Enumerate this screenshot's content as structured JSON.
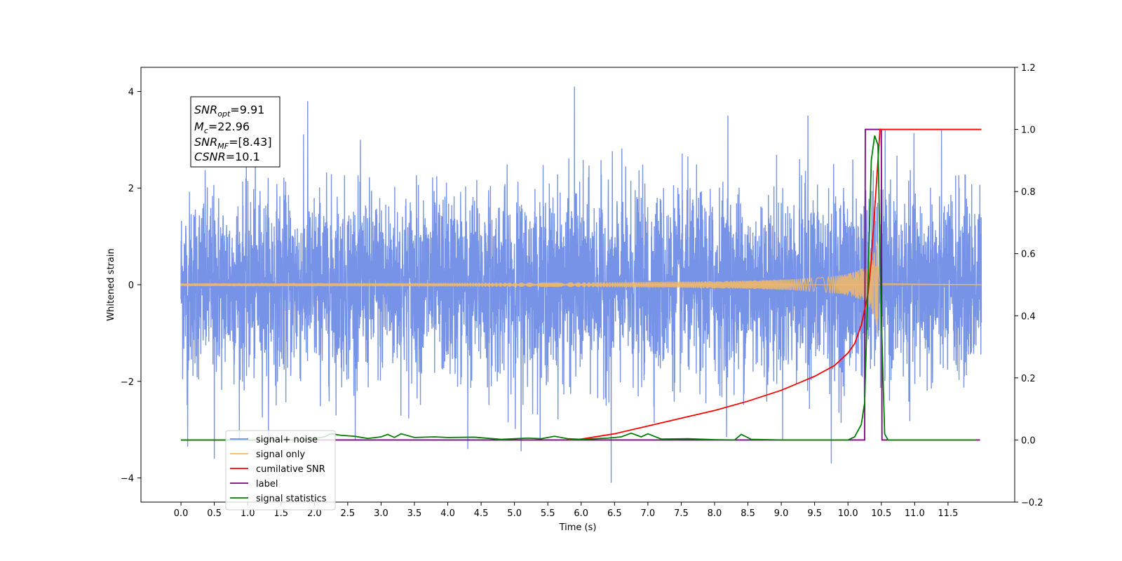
{
  "chart_data": {
    "type": "line",
    "xlabel": "Time (s)",
    "ylabel": "Whitened strain",
    "xlim": [
      -0.6,
      12.5
    ],
    "ylim": [
      -4.5,
      4.5
    ],
    "y2lim": [
      -0.2,
      1.2
    ],
    "x_ticks": [
      "0.0",
      "0.5",
      "1.0",
      "1.5",
      "2.0",
      "2.5",
      "3.0",
      "3.5",
      "4.0",
      "4.5",
      "5.0",
      "5.5",
      "6.0",
      "6.5",
      "7.0",
      "7.5",
      "8.0",
      "8.5",
      "9.0",
      "9.5",
      "10.0",
      "10.5",
      "11.0",
      "11.5"
    ],
    "y_ticks": [
      "-4",
      "-2",
      "0",
      "2",
      "4"
    ],
    "y2_ticks": [
      "-0.2",
      "0.0",
      "0.2",
      "0.4",
      "0.6",
      "0.8",
      "1.0",
      "1.2"
    ],
    "legend_location": "lower-left",
    "annotation": {
      "snr_opt": "9.91",
      "mc": "22.96",
      "snr_mf": "[8.43]",
      "csnr": "10.1"
    },
    "series": [
      {
        "name": "signal+ noise",
        "axis": "left",
        "color": "#6f8de6",
        "t_range": [
          0,
          12
        ],
        "approx_std": 0.95,
        "spikes": [
          [
            5.9,
            4.1
          ],
          [
            1.9,
            3.8
          ],
          [
            0.5,
            -3.6
          ],
          [
            6.45,
            -4.1
          ],
          [
            9.75,
            -3.7
          ],
          [
            8.2,
            3.5
          ],
          [
            4.3,
            -3.4
          ],
          [
            0.1,
            -3.35
          ],
          [
            5.1,
            -3.45
          ],
          [
            9.4,
            3.5
          ]
        ]
      },
      {
        "name": "signal only",
        "axis": "left",
        "color": "#f5b964",
        "t_range": [
          0,
          10.5
        ],
        "merger_time": 10.45,
        "peak_amplitude": 1.15
      },
      {
        "name": "cumilative SNR",
        "axis": "right",
        "color": "#ff0000",
        "points": [
          [
            5.8,
            0.0
          ],
          [
            6.0,
            0.003
          ],
          [
            6.5,
            0.02
          ],
          [
            7.0,
            0.045
          ],
          [
            7.5,
            0.07
          ],
          [
            8.0,
            0.095
          ],
          [
            8.5,
            0.125
          ],
          [
            9.0,
            0.16
          ],
          [
            9.5,
            0.205
          ],
          [
            9.8,
            0.24
          ],
          [
            10.0,
            0.28
          ],
          [
            10.1,
            0.31
          ],
          [
            10.2,
            0.37
          ],
          [
            10.3,
            0.47
          ],
          [
            10.35,
            0.58
          ],
          [
            10.4,
            0.74
          ],
          [
            10.45,
            0.9
          ],
          [
            10.48,
            1.0
          ],
          [
            12.0,
            1.0
          ]
        ]
      },
      {
        "name": "label",
        "axis": "right",
        "color": "#800080",
        "points": [
          [
            0.0,
            0.0
          ],
          [
            10.25,
            0.0
          ],
          [
            10.26,
            1.0
          ],
          [
            10.5,
            1.0
          ],
          [
            10.51,
            0.0
          ],
          [
            11.98,
            0.0
          ]
        ]
      },
      {
        "name": "signal statistics",
        "axis": "right",
        "color": "#008000",
        "points": [
          [
            0.0,
            0.0
          ],
          [
            1.5,
            0.0
          ],
          [
            1.8,
            0.0
          ],
          [
            2.0,
            0.005
          ],
          [
            2.15,
            0.01
          ],
          [
            2.25,
            0.02
          ],
          [
            2.4,
            0.015
          ],
          [
            2.6,
            0.012
          ],
          [
            2.8,
            0.005
          ],
          [
            3.0,
            0.01
          ],
          [
            3.1,
            0.018
          ],
          [
            3.2,
            0.008
          ],
          [
            3.3,
            0.02
          ],
          [
            3.5,
            0.008
          ],
          [
            3.8,
            0.01
          ],
          [
            4.0,
            0.008
          ],
          [
            4.4,
            0.009
          ],
          [
            4.8,
            0.002
          ],
          [
            5.2,
            0.006
          ],
          [
            5.4,
            0.004
          ],
          [
            5.6,
            0.012
          ],
          [
            5.8,
            0.004
          ],
          [
            6.0,
            0.002
          ],
          [
            6.4,
            0.006
          ],
          [
            6.6,
            0.01
          ],
          [
            6.75,
            0.022
          ],
          [
            6.9,
            0.01
          ],
          [
            7.0,
            0.02
          ],
          [
            7.2,
            0.003
          ],
          [
            7.6,
            0.004
          ],
          [
            8.0,
            0.001
          ],
          [
            8.3,
            0.0
          ],
          [
            8.4,
            0.018
          ],
          [
            8.55,
            0.002
          ],
          [
            9.0,
            0.0
          ],
          [
            9.8,
            0.0
          ],
          [
            10.0,
            0.0
          ],
          [
            10.1,
            0.01
          ],
          [
            10.2,
            0.05
          ],
          [
            10.25,
            0.12
          ],
          [
            10.3,
            0.5
          ],
          [
            10.35,
            0.9
          ],
          [
            10.4,
            0.98
          ],
          [
            10.45,
            0.95
          ],
          [
            10.5,
            0.4
          ],
          [
            10.55,
            0.02
          ],
          [
            10.6,
            0.0
          ],
          [
            11.92,
            0.0
          ]
        ]
      }
    ]
  }
}
